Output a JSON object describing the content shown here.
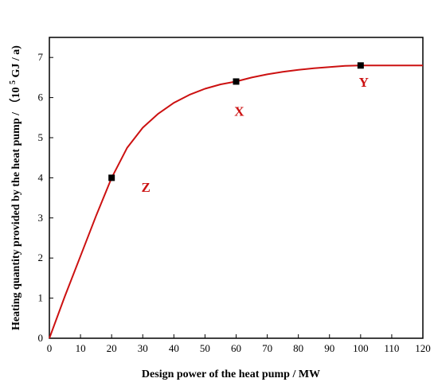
{
  "chart_data": {
    "type": "line",
    "xlabel": "Design power of the heat pump / MW",
    "ylabel_main": "Heating quantity provided by the heat pump /",
    "ylabel_unit_prefix": "（10",
    "ylabel_unit_exp": "5",
    "ylabel_unit_suffix": " GJ / a)",
    "xlim": [
      0,
      120
    ],
    "ylim": [
      0,
      7.5
    ],
    "xticks": [
      0,
      10,
      20,
      30,
      40,
      50,
      60,
      70,
      80,
      90,
      100,
      110,
      120
    ],
    "yticks": [
      0,
      1,
      2,
      3,
      4,
      5,
      6,
      7
    ],
    "grid": false,
    "colors": {
      "curve": "#cc1111",
      "marker": "#000000",
      "axis": "#000000"
    },
    "series": [
      {
        "x": [
          0,
          5,
          10,
          15,
          20,
          25,
          30,
          35,
          40,
          45,
          50,
          55,
          60,
          65,
          70,
          75,
          80,
          85,
          90,
          95,
          100,
          105,
          110,
          115,
          120
        ],
        "values": [
          0,
          1.05,
          2.05,
          3.05,
          4.0,
          4.75,
          5.25,
          5.6,
          5.87,
          6.07,
          6.22,
          6.33,
          6.4,
          6.5,
          6.58,
          6.64,
          6.69,
          6.73,
          6.76,
          6.79,
          6.8,
          6.8,
          6.8,
          6.8,
          6.8
        ]
      }
    ],
    "markers": [
      {
        "x": 20,
        "y": 4.0
      },
      {
        "x": 60,
        "y": 6.4
      },
      {
        "x": 100,
        "y": 6.8
      }
    ],
    "annotations": [
      {
        "text": "Z",
        "x": 31,
        "y": 3.65
      },
      {
        "text": "X",
        "x": 61,
        "y": 5.55
      },
      {
        "text": "Y",
        "x": 101,
        "y": 6.27
      }
    ]
  }
}
